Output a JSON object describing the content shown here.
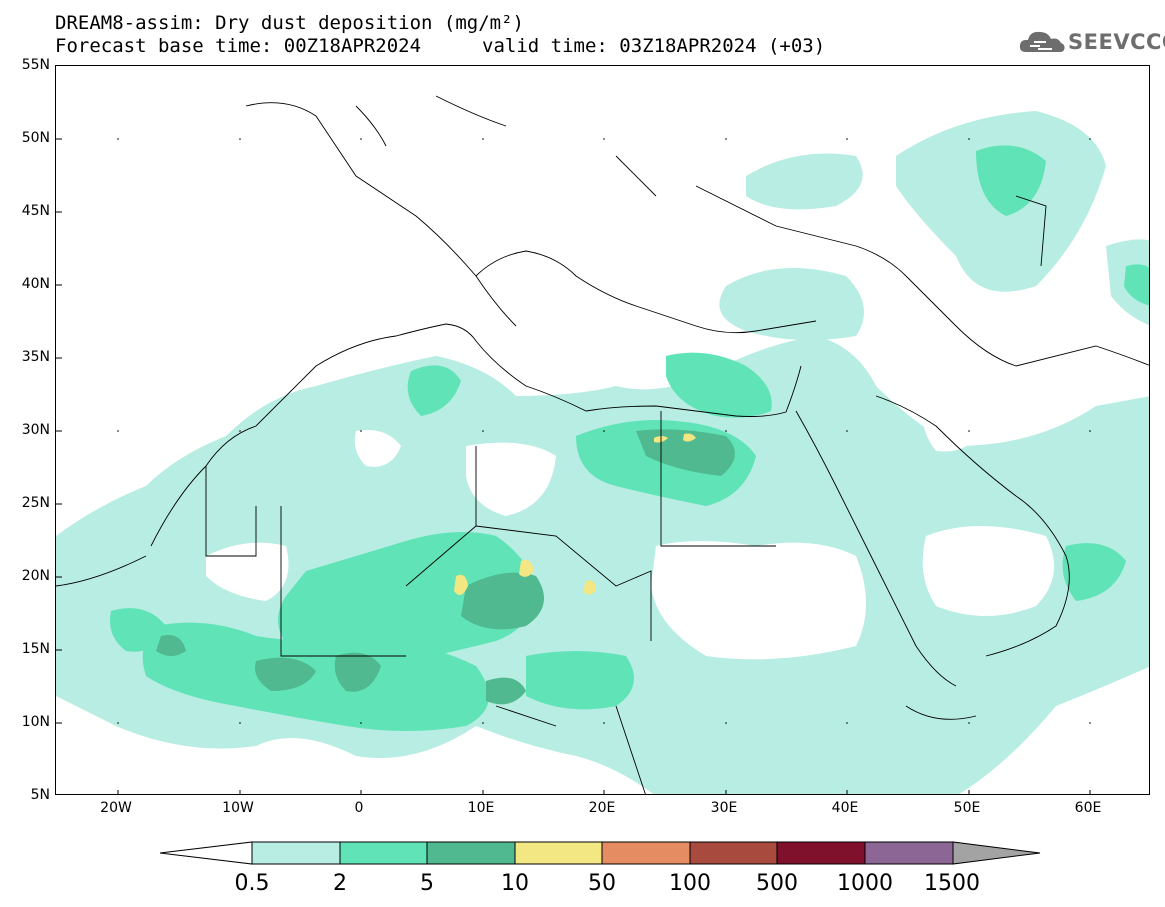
{
  "title": {
    "line1": "DREAM8-assim: Dry dust deposition (mg/m²)",
    "line2": "Forecast base time: 00Z18APR2024",
    "valid": "valid time: 03Z18APR2024 (+03)"
  },
  "logo": {
    "text": "SEEVCCC",
    "icon": "cloud-icon"
  },
  "map": {
    "lat_labels": [
      "55N",
      "50N",
      "45N",
      "40N",
      "35N",
      "30N",
      "25N",
      "20N",
      "15N",
      "10N",
      "5N"
    ],
    "lon_labels": [
      "20W",
      "10W",
      "0",
      "10E",
      "20E",
      "30E",
      "40E",
      "50E",
      "60E"
    ]
  },
  "colorbar": {
    "labels": [
      "0.5",
      "2",
      "5",
      "10",
      "50",
      "100",
      "500",
      "1000",
      "1500"
    ],
    "colors": [
      "#b7ede2",
      "#5fe3b7",
      "#51b98f",
      "#f2e782",
      "#e58c63",
      "#a94a3f",
      "#80112c",
      "#8c6796",
      "#a3a3a3"
    ]
  }
}
